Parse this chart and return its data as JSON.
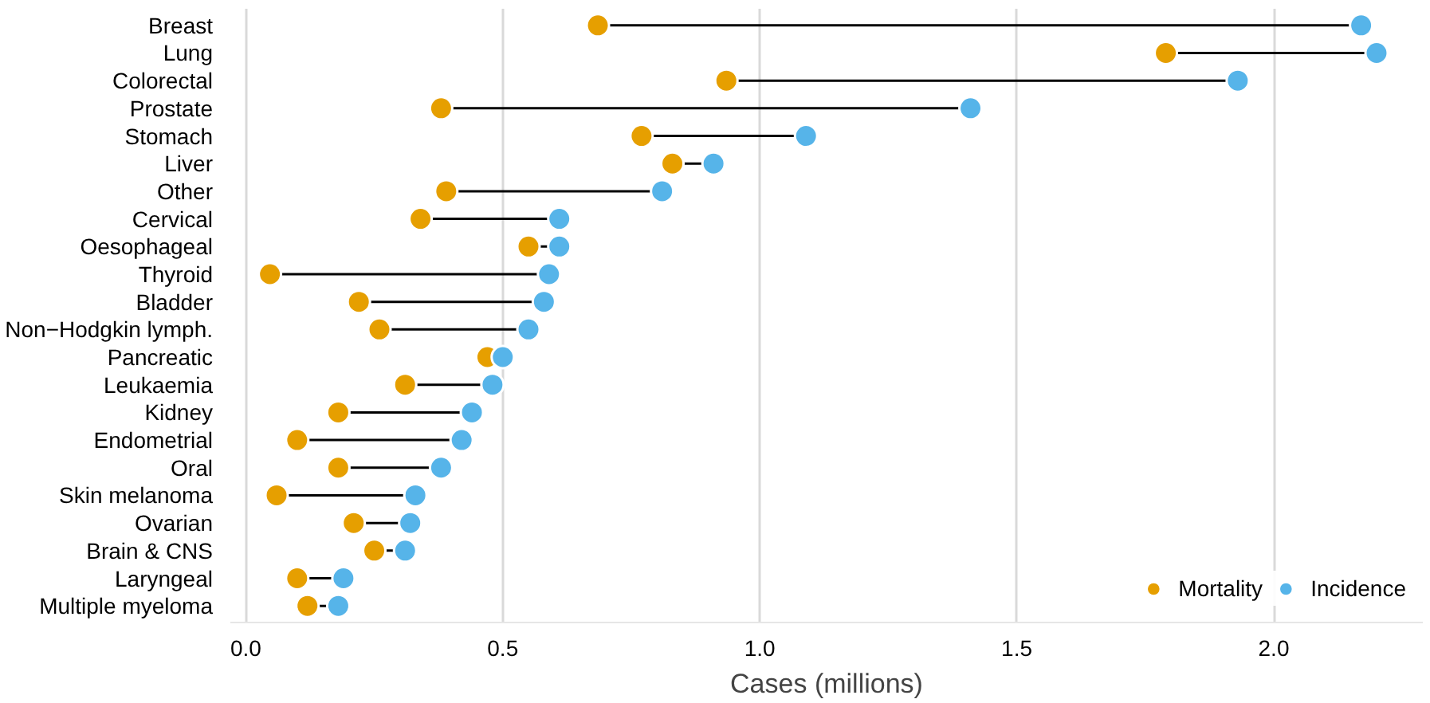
{
  "chart_data": {
    "type": "lollipop",
    "orientation": "horizontal",
    "xlabel": "Cases (millions)",
    "categories": [
      "Breast",
      "Lung",
      "Colorectal",
      "Prostate",
      "Stomach",
      "Liver",
      "Other",
      "Cervical",
      "Oesophageal",
      "Thyroid",
      "Bladder",
      "Non−Hodgkin lymph.",
      "Pancreatic",
      "Leukaemia",
      "Kidney",
      "Endometrial",
      "Oral",
      "Skin melanoma",
      "Ovarian",
      "Brain & CNS",
      "Laryngeal",
      "Multiple myeloma"
    ],
    "series": [
      {
        "name": "Mortality",
        "color": "#e69f00",
        "values": [
          0.685,
          1.79,
          0.935,
          0.38,
          0.77,
          0.83,
          0.39,
          0.34,
          0.55,
          0.047,
          0.22,
          0.26,
          0.47,
          0.31,
          0.18,
          0.1,
          0.18,
          0.06,
          0.21,
          0.25,
          0.1,
          0.12
        ]
      },
      {
        "name": "Incidence",
        "color": "#56b4e9",
        "values": [
          2.17,
          2.2,
          1.93,
          1.41,
          1.09,
          0.91,
          0.81,
          0.61,
          0.61,
          0.59,
          0.58,
          0.55,
          0.5,
          0.48,
          0.44,
          0.42,
          0.38,
          0.33,
          0.32,
          0.31,
          0.19,
          0.18
        ]
      }
    ],
    "xlim": [
      -0.03,
      2.29
    ],
    "xticks": [
      {
        "value": 0,
        "label": "0.0"
      },
      0.5,
      {
        "value": 1,
        "label": "1.0"
      },
      1.5,
      {
        "value": 2,
        "label": "2.0"
      }
    ],
    "grid": "x",
    "legend": "bottom right",
    "marker": "circle"
  }
}
